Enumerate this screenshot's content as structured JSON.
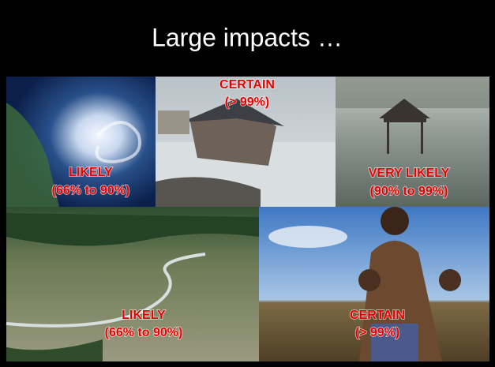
{
  "title": "Large impacts …",
  "panels": [
    {
      "label": [
        "LIKELY",
        "(66% to 90%)"
      ]
    },
    {
      "label": [
        "CERTAIN",
        "(> 99%)"
      ]
    },
    {
      "label": [
        "VERY LIKELY",
        "(90% to 99%)"
      ]
    },
    {
      "label": [
        "LIKELY",
        "(66% to 90%)"
      ]
    },
    {
      "label": [
        "CERTAIN",
        "(> 99%)"
      ]
    }
  ]
}
